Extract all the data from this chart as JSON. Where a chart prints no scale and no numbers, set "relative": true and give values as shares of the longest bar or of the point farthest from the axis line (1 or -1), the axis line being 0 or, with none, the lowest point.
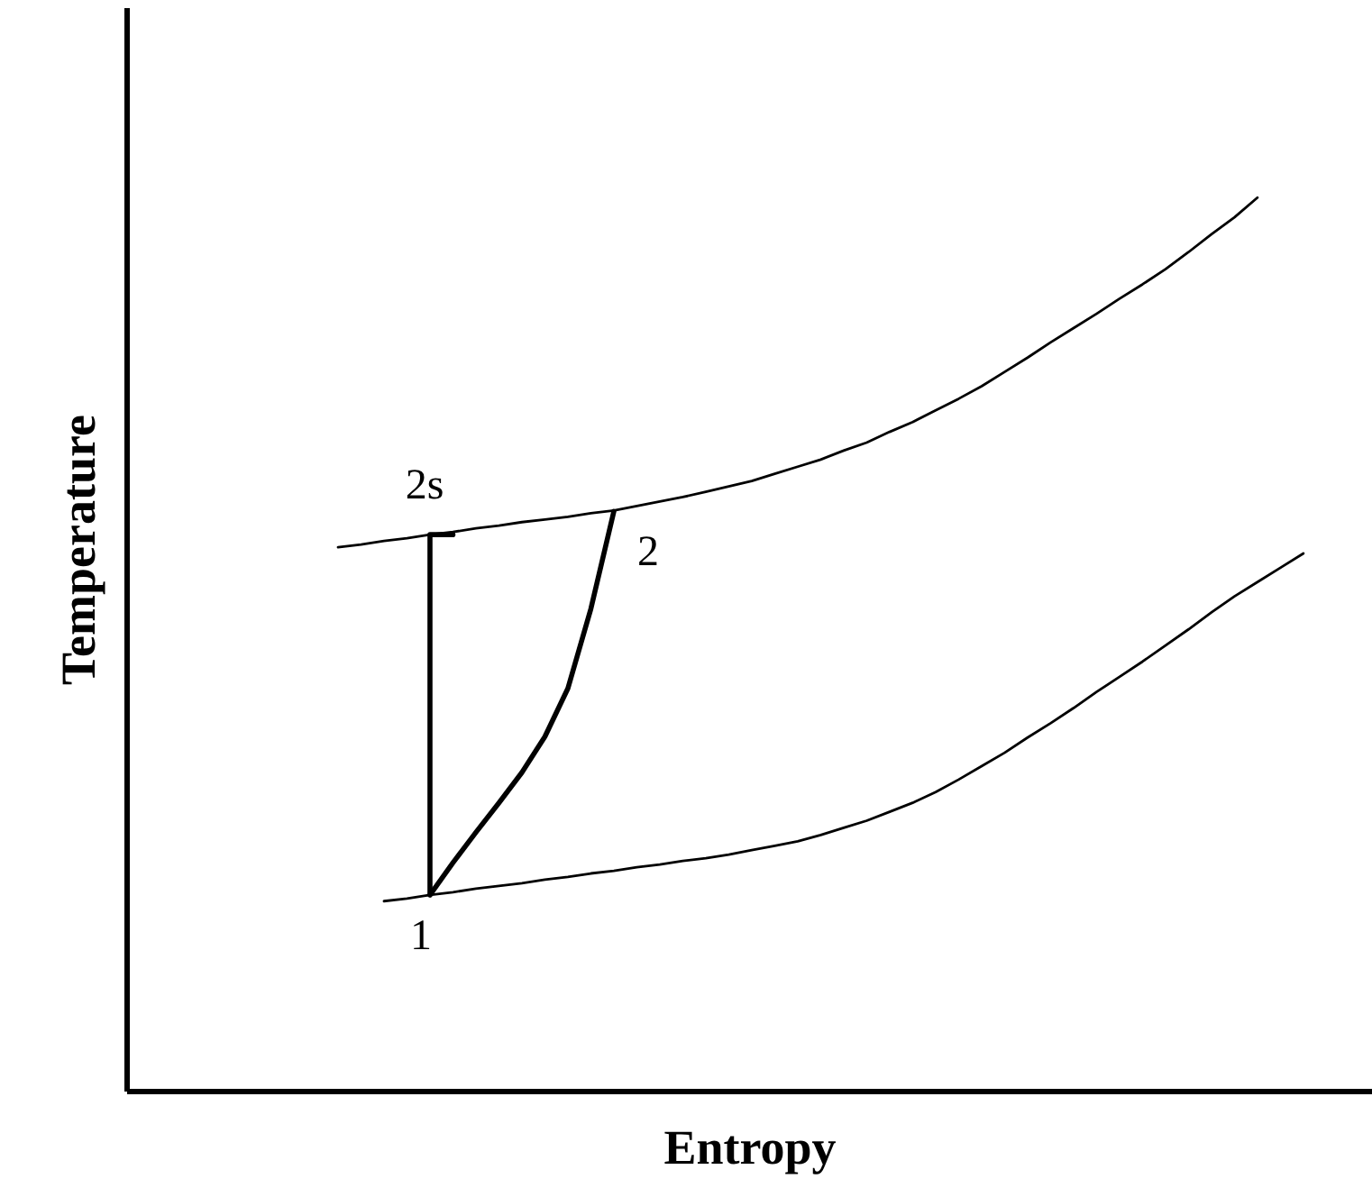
{
  "chart_data": {
    "type": "line",
    "relative": true,
    "xlabel": "Entropy",
    "ylabel": "Temperature",
    "categories": [
      null,
      null,
      null,
      null,
      null,
      null,
      null,
      null,
      null,
      null,
      null,
      null,
      null,
      null,
      null,
      null,
      null,
      null,
      null,
      null,
      null,
      null,
      null,
      null,
      null,
      null,
      null,
      null,
      null,
      null,
      null,
      null,
      null,
      null,
      null,
      null,
      null,
      null,
      null,
      null,
      null,
      null,
      null
    ],
    "series": [
      {
        "color": "#000000",
        "values": [
          0.609,
          0.612,
          0.616,
          0.619,
          0.623,
          0.626,
          0.63,
          0.633,
          0.637,
          0.64,
          0.643,
          0.647,
          0.65,
          0.655,
          0.66,
          0.665,
          0.671,
          0.677,
          0.683,
          0.691,
          0.699,
          0.707,
          0.717,
          0.726,
          0.738,
          0.749,
          0.762,
          0.775,
          0.789,
          0.805,
          0.821,
          0.838,
          0.854,
          0.87,
          0.887,
          0.903,
          0.92,
          0.939,
          0.959,
          0.978,
          1.0,
          null,
          null
        ]
      },
      {
        "color": "#000000",
        "values": [
          null,
          null,
          0.213,
          0.216,
          0.22,
          0.223,
          0.227,
          0.23,
          0.233,
          0.237,
          0.24,
          0.244,
          0.247,
          0.251,
          0.254,
          0.258,
          0.261,
          0.265,
          0.27,
          0.275,
          0.28,
          0.287,
          0.295,
          0.303,
          0.313,
          0.323,
          0.335,
          0.349,
          0.364,
          0.379,
          0.396,
          0.412,
          0.429,
          0.447,
          0.464,
          0.481,
          0.499,
          0.517,
          0.536,
          0.554,
          0.57,
          0.586,
          0.602
        ]
      },
      {
        "type": "step",
        "color": "#000000",
        "values": [
          null,
          null,
          null,
          null,
          0.22,
          0.623,
          null,
          null,
          null,
          null,
          null,
          null,
          null,
          null,
          null,
          null,
          null,
          null,
          null,
          null,
          null,
          null,
          null,
          null,
          null,
          null,
          null,
          null,
          null,
          null,
          null,
          null,
          null,
          null,
          null,
          null,
          null,
          null,
          null,
          null,
          null,
          null,
          null
        ]
      },
      {
        "color": "#000000",
        "values": [
          null,
          null,
          null,
          null,
          0.22,
          0.256,
          0.29,
          0.323,
          0.357,
          0.397,
          0.451,
          0.54,
          0.649,
          null,
          null,
          null,
          null,
          null,
          null,
          null,
          null,
          null,
          null,
          null,
          null,
          null,
          null,
          null,
          null,
          null,
          null,
          null,
          null,
          null,
          null,
          null,
          null,
          null,
          null,
          null,
          null,
          null,
          null
        ]
      }
    ],
    "annotations": [
      "2s",
      "2",
      "1"
    ]
  }
}
